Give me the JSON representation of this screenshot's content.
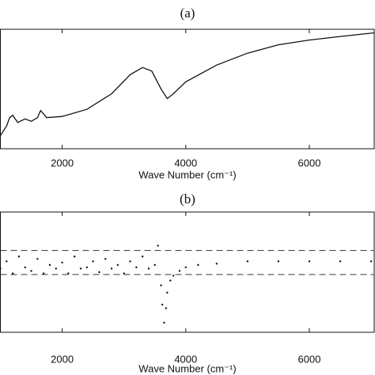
{
  "chart_data": [
    {
      "type": "line",
      "title": "(a)",
      "x_label": "Wave Number (cm⁻¹)",
      "xlim": [
        1000,
        7050
      ],
      "xticks": [
        2000,
        4000,
        6000
      ],
      "ylim": [
        0,
        1
      ],
      "color": "#111111",
      "x": [
        1000,
        1100,
        1150,
        1200,
        1280,
        1400,
        1500,
        1600,
        1650,
        1750,
        2000,
        2400,
        2800,
        3100,
        3300,
        3450,
        3600,
        3700,
        3800,
        4000,
        4500,
        5000,
        5500,
        6000,
        6500,
        7050
      ],
      "values": [
        0.11,
        0.19,
        0.26,
        0.28,
        0.22,
        0.25,
        0.23,
        0.26,
        0.32,
        0.26,
        0.27,
        0.33,
        0.46,
        0.62,
        0.68,
        0.65,
        0.5,
        0.42,
        0.46,
        0.56,
        0.7,
        0.8,
        0.87,
        0.91,
        0.94,
        0.97
      ]
    },
    {
      "type": "scatter",
      "title": "(b)",
      "x_label": "Wave Number (cm⁻¹)",
      "xlim": [
        1000,
        7050
      ],
      "xticks": [
        2000,
        4000,
        6000
      ],
      "ylim": [
        0,
        1
      ],
      "color": "#111111",
      "reference_lines": [
        0.68,
        0.48
      ],
      "x": [
        1000,
        1100,
        1200,
        1300,
        1400,
        1500,
        1600,
        1700,
        1800,
        1900,
        2000,
        2100,
        2200,
        2300,
        2400,
        2500,
        2600,
        2700,
        2800,
        2900,
        3000,
        3100,
        3200,
        3300,
        3400,
        3500,
        3550,
        3600,
        3620,
        3650,
        3680,
        3700,
        3750,
        3800,
        3900,
        4000,
        4200,
        4500,
        5000,
        5500,
        6000,
        6500,
        7000
      ],
      "values": [
        0.53,
        0.59,
        0.49,
        0.63,
        0.54,
        0.51,
        0.61,
        0.49,
        0.56,
        0.53,
        0.58,
        0.49,
        0.63,
        0.53,
        0.54,
        0.59,
        0.5,
        0.61,
        0.53,
        0.56,
        0.49,
        0.59,
        0.54,
        0.63,
        0.53,
        0.56,
        0.72,
        0.39,
        0.23,
        0.08,
        0.2,
        0.33,
        0.43,
        0.47,
        0.51,
        0.54,
        0.56,
        0.57,
        0.59,
        0.59,
        0.59,
        0.59,
        0.59
      ]
    }
  ]
}
